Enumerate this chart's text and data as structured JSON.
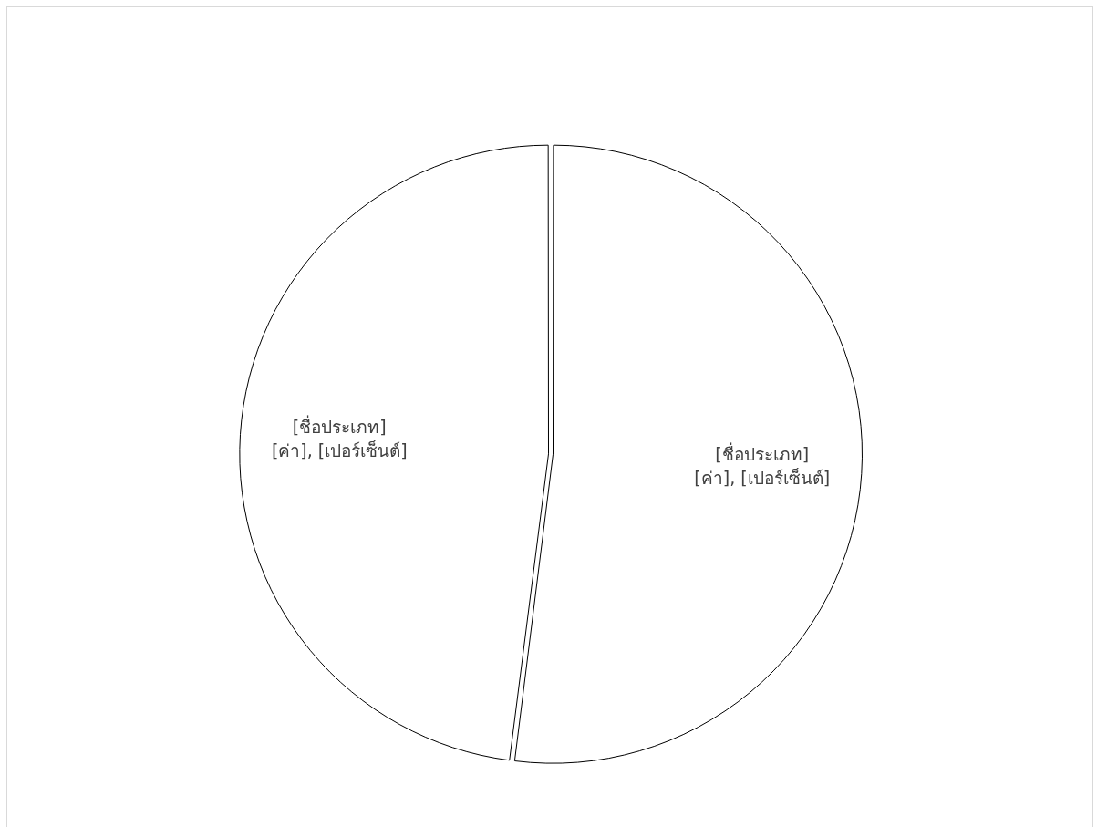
{
  "chart_data": {
    "type": "pie",
    "categories": [
      "[ชื่อประเภท]",
      "[ชื่อประเภท]"
    ],
    "values": [
      52,
      48
    ],
    "colors": [
      "#ffffff",
      "#ffffff"
    ],
    "value_labels": [
      "[ค่า], [เปอร์เซ็นต์]",
      "[ค่า], [เปอร์เซ็นต์]"
    ],
    "legend": false
  }
}
